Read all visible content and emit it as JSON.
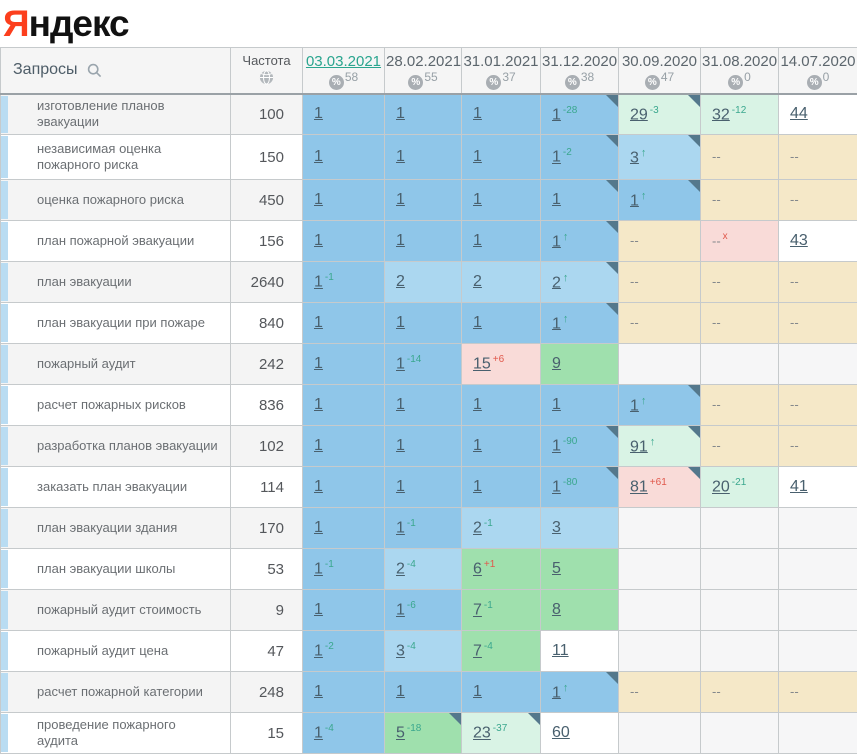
{
  "logo": {
    "first_letter": "Я",
    "rest": "ндекс"
  },
  "icons": {
    "percent": "%",
    "up_arrow": "↑",
    "removed_mark": "x",
    "not_ranked": "--"
  },
  "colors": {
    "logo_red": "#fc3f1d",
    "accent_link": "#2aa58f",
    "date_header_text": "#5c666d",
    "delta_improve": "#3aa78e",
    "delta_worse": "#e0584b",
    "corner_marker": "#54788c",
    "row_stripe": "#b9dcf2",
    "cell_pos_top1": "#8fc6e9",
    "cell_pos_top3": "#abd7f0",
    "cell_pos_top10": "#9fe0ad",
    "cell_improved": "#d9f3e5",
    "cell_worsened": "#f9dbd8",
    "cell_not_ranked": "#f5e8c8",
    "cell_plain": "#ffffff",
    "cell_empty": "#f6f6f7"
  },
  "table": {
    "queries_header": "Запросы",
    "frequency_header": "Частота",
    "columns": [
      {
        "date": "03.03.2021",
        "percent": "58",
        "active": true
      },
      {
        "date": "28.02.2021",
        "percent": "55",
        "active": false
      },
      {
        "date": "31.01.2021",
        "percent": "37",
        "active": false
      },
      {
        "date": "31.12.2020",
        "percent": "38",
        "active": false
      },
      {
        "date": "30.09.2020",
        "percent": "47",
        "active": false
      },
      {
        "date": "31.08.2020",
        "percent": "0",
        "active": false
      },
      {
        "date": "14.07.2020",
        "percent": "0",
        "active": false
      }
    ],
    "rows": [
      {
        "query": "изготовление планов эвакуации",
        "frequency": "100",
        "cells": [
          {
            "v": "1",
            "bg": "b1"
          },
          {
            "v": "1",
            "bg": "b1"
          },
          {
            "v": "1",
            "bg": "b1"
          },
          {
            "v": "1",
            "d": "-28",
            "dc": "up",
            "cr": true,
            "bg": "b1"
          },
          {
            "v": "29",
            "d": "-3",
            "dc": "up",
            "cr": true,
            "bg": "imp"
          },
          {
            "v": "32",
            "d": "-12",
            "dc": "up",
            "bg": "imp"
          },
          {
            "v": "44",
            "bg": "white"
          }
        ]
      },
      {
        "query": "независимая оценка пожарного риска",
        "frequency": "150",
        "cells": [
          {
            "v": "1",
            "bg": "b1"
          },
          {
            "v": "1",
            "bg": "b1"
          },
          {
            "v": "1",
            "bg": "b1"
          },
          {
            "v": "1",
            "d": "-2",
            "dc": "up",
            "cr": true,
            "bg": "b1"
          },
          {
            "v": "3",
            "ar": true,
            "cr": true,
            "bg": "b2"
          },
          {
            "v": "--",
            "bg": "na"
          },
          {
            "v": "--",
            "bg": "na"
          }
        ]
      },
      {
        "query": "оценка пожарного риска",
        "frequency": "450",
        "cells": [
          {
            "v": "1",
            "bg": "b1"
          },
          {
            "v": "1",
            "bg": "b1"
          },
          {
            "v": "1",
            "bg": "b1"
          },
          {
            "v": "1",
            "cr": true,
            "bg": "b1"
          },
          {
            "v": "1",
            "ar": true,
            "cr": true,
            "bg": "b1"
          },
          {
            "v": "--",
            "bg": "na"
          },
          {
            "v": "--",
            "bg": "na"
          }
        ]
      },
      {
        "query": "план пожарной эвакуации",
        "frequency": "156",
        "cells": [
          {
            "v": "1",
            "bg": "b1"
          },
          {
            "v": "1",
            "bg": "b1"
          },
          {
            "v": "1",
            "bg": "b1"
          },
          {
            "v": "1",
            "ar": true,
            "cr": true,
            "bg": "b1"
          },
          {
            "v": "--",
            "bg": "na"
          },
          {
            "v": "--",
            "x": true,
            "bg": "bad"
          },
          {
            "v": "43",
            "bg": "white"
          }
        ]
      },
      {
        "query": "план эвакуации",
        "frequency": "2640",
        "cells": [
          {
            "v": "1",
            "d": "-1",
            "dc": "up",
            "bg": "b1"
          },
          {
            "v": "2",
            "bg": "b2"
          },
          {
            "v": "2",
            "bg": "b2"
          },
          {
            "v": "2",
            "ar": true,
            "cr": true,
            "bg": "b2"
          },
          {
            "v": "--",
            "bg": "na"
          },
          {
            "v": "--",
            "bg": "na"
          },
          {
            "v": "--",
            "bg": "na"
          }
        ]
      },
      {
        "query": "план эвакуации при пожаре",
        "frequency": "840",
        "cells": [
          {
            "v": "1",
            "bg": "b1"
          },
          {
            "v": "1",
            "bg": "b1"
          },
          {
            "v": "1",
            "bg": "b1"
          },
          {
            "v": "1",
            "ar": true,
            "cr": true,
            "bg": "b1"
          },
          {
            "v": "--",
            "bg": "na"
          },
          {
            "v": "--",
            "bg": "na"
          },
          {
            "v": "--",
            "bg": "na"
          }
        ]
      },
      {
        "query": "пожарный аудит",
        "frequency": "242",
        "cells": [
          {
            "v": "1",
            "bg": "b1"
          },
          {
            "v": "1",
            "d": "-14",
            "dc": "up",
            "bg": "b1"
          },
          {
            "v": "15",
            "d": "+6",
            "dc": "down",
            "bg": "bad"
          },
          {
            "v": "9",
            "bg": "g10"
          },
          {
            "bg": "empty"
          },
          {
            "bg": "empty"
          },
          {
            "bg": "empty"
          }
        ]
      },
      {
        "query": "расчет пожарных рисков",
        "frequency": "836",
        "cells": [
          {
            "v": "1",
            "bg": "b1"
          },
          {
            "v": "1",
            "bg": "b1"
          },
          {
            "v": "1",
            "bg": "b1"
          },
          {
            "v": "1",
            "bg": "b1"
          },
          {
            "v": "1",
            "ar": true,
            "cr": true,
            "bg": "b1"
          },
          {
            "v": "--",
            "bg": "na"
          },
          {
            "v": "--",
            "bg": "na"
          }
        ]
      },
      {
        "query": "разработка планов эвакуации",
        "frequency": "102",
        "cells": [
          {
            "v": "1",
            "bg": "b1"
          },
          {
            "v": "1",
            "bg": "b1"
          },
          {
            "v": "1",
            "bg": "b1"
          },
          {
            "v": "1",
            "d": "-90",
            "dc": "up",
            "cr": true,
            "bg": "b1"
          },
          {
            "v": "91",
            "ar": true,
            "cr": true,
            "bg": "imp"
          },
          {
            "v": "--",
            "bg": "na"
          },
          {
            "v": "--",
            "bg": "na"
          }
        ]
      },
      {
        "query": "заказать план эвакуации",
        "frequency": "114",
        "cells": [
          {
            "v": "1",
            "bg": "b1"
          },
          {
            "v": "1",
            "bg": "b1"
          },
          {
            "v": "1",
            "bg": "b1"
          },
          {
            "v": "1",
            "d": "-80",
            "dc": "up",
            "cr": true,
            "bg": "b1"
          },
          {
            "v": "81",
            "d": "+61",
            "dc": "down",
            "cr": true,
            "bg": "bad"
          },
          {
            "v": "20",
            "d": "-21",
            "dc": "up",
            "bg": "imp"
          },
          {
            "v": "41",
            "bg": "white"
          }
        ]
      },
      {
        "query": "план эвакуации здания",
        "frequency": "170",
        "cells": [
          {
            "v": "1",
            "bg": "b1"
          },
          {
            "v": "1",
            "d": "-1",
            "dc": "up",
            "bg": "b1"
          },
          {
            "v": "2",
            "d": "-1",
            "dc": "up",
            "bg": "b2"
          },
          {
            "v": "3",
            "bg": "b2"
          },
          {
            "bg": "empty"
          },
          {
            "bg": "empty"
          },
          {
            "bg": "empty"
          }
        ]
      },
      {
        "query": "план эвакуации школы",
        "frequency": "53",
        "cells": [
          {
            "v": "1",
            "d": "-1",
            "dc": "up",
            "bg": "b1"
          },
          {
            "v": "2",
            "d": "-4",
            "dc": "up",
            "bg": "b2"
          },
          {
            "v": "6",
            "d": "+1",
            "dc": "down",
            "bg": "g10"
          },
          {
            "v": "5",
            "bg": "g10"
          },
          {
            "bg": "empty"
          },
          {
            "bg": "empty"
          },
          {
            "bg": "empty"
          }
        ]
      },
      {
        "query": "пожарный аудит стоимость",
        "frequency": "9",
        "cells": [
          {
            "v": "1",
            "bg": "b1"
          },
          {
            "v": "1",
            "d": "-6",
            "dc": "up",
            "bg": "b1"
          },
          {
            "v": "7",
            "d": "-1",
            "dc": "up",
            "bg": "g10"
          },
          {
            "v": "8",
            "bg": "g10"
          },
          {
            "bg": "empty"
          },
          {
            "bg": "empty"
          },
          {
            "bg": "empty"
          }
        ]
      },
      {
        "query": "пожарный аудит цена",
        "frequency": "47",
        "cells": [
          {
            "v": "1",
            "d": "-2",
            "dc": "up",
            "bg": "b1"
          },
          {
            "v": "3",
            "d": "-4",
            "dc": "up",
            "bg": "b2"
          },
          {
            "v": "7",
            "d": "-4",
            "dc": "up",
            "bg": "g10"
          },
          {
            "v": "11",
            "bg": "white"
          },
          {
            "bg": "empty"
          },
          {
            "bg": "empty"
          },
          {
            "bg": "empty"
          }
        ]
      },
      {
        "query": "расчет пожарной категории",
        "frequency": "248",
        "cells": [
          {
            "v": "1",
            "bg": "b1"
          },
          {
            "v": "1",
            "bg": "b1"
          },
          {
            "v": "1",
            "bg": "b1"
          },
          {
            "v": "1",
            "ar": true,
            "cr": true,
            "bg": "b1"
          },
          {
            "v": "--",
            "bg": "na"
          },
          {
            "v": "--",
            "bg": "na"
          },
          {
            "v": "--",
            "bg": "na"
          }
        ]
      },
      {
        "query": "проведение пожарного аудита",
        "frequency": "15",
        "cells": [
          {
            "v": "1",
            "d": "-4",
            "dc": "up",
            "bg": "b1"
          },
          {
            "v": "5",
            "d": "-18",
            "dc": "up",
            "cr": true,
            "bg": "g10"
          },
          {
            "v": "23",
            "d": "-37",
            "dc": "up",
            "cr": true,
            "bg": "imp"
          },
          {
            "v": "60",
            "bg": "white"
          },
          {
            "bg": "empty"
          },
          {
            "bg": "empty"
          },
          {
            "bg": "empty"
          }
        ]
      }
    ]
  }
}
